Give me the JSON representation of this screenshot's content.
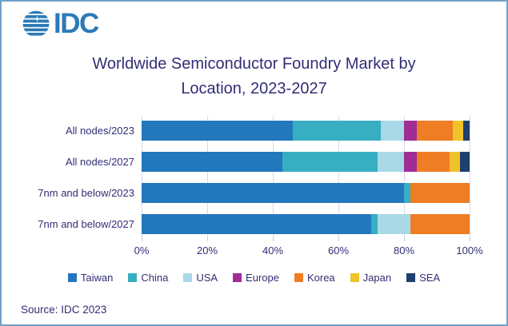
{
  "logo": {
    "text": "IDC",
    "color": "#2b7ab8"
  },
  "title": {
    "line1": "Worldwide Semiconductor Foundry Market by",
    "line2": "Location, 2023-2027"
  },
  "source": {
    "text": "Source: IDC 2023"
  },
  "colors": {
    "text": "#312e75",
    "border": "#73a1c6",
    "gridline": "#d9d8e6"
  },
  "chart_data": {
    "type": "bar",
    "orientation": "horizontal",
    "stacked": true,
    "title": "Worldwide Semiconductor Foundry Market by Location, 2023-2027",
    "categories": [
      "All nodes/2023",
      "All nodes/2027",
      "7nm and below/2023",
      "7nm and below/2027"
    ],
    "series": [
      {
        "name": "Taiwan",
        "color": "#2377bc",
        "values": [
          46,
          43,
          80,
          70
        ]
      },
      {
        "name": "China",
        "color": "#38aec3",
        "values": [
          27,
          29,
          2,
          2
        ]
      },
      {
        "name": "USA",
        "color": "#a8d9e6",
        "values": [
          7,
          8,
          0,
          10
        ]
      },
      {
        "name": "Europe",
        "color": "#a02c96",
        "values": [
          4,
          4,
          0,
          0
        ]
      },
      {
        "name": "Korea",
        "color": "#ef7d24",
        "values": [
          11,
          10,
          18,
          18
        ]
      },
      {
        "name": "Japan",
        "color": "#efc32a",
        "values": [
          3,
          3,
          0,
          0
        ]
      },
      {
        "name": "SEA",
        "color": "#1f406e",
        "values": [
          2,
          3,
          0,
          0
        ]
      }
    ],
    "x_ticks": [
      "0%",
      "20%",
      "40%",
      "60%",
      "80%",
      "100%"
    ],
    "xlim": [
      0,
      100
    ],
    "xlabel": "",
    "ylabel": "",
    "grid": true,
    "legend_position": "bottom"
  }
}
